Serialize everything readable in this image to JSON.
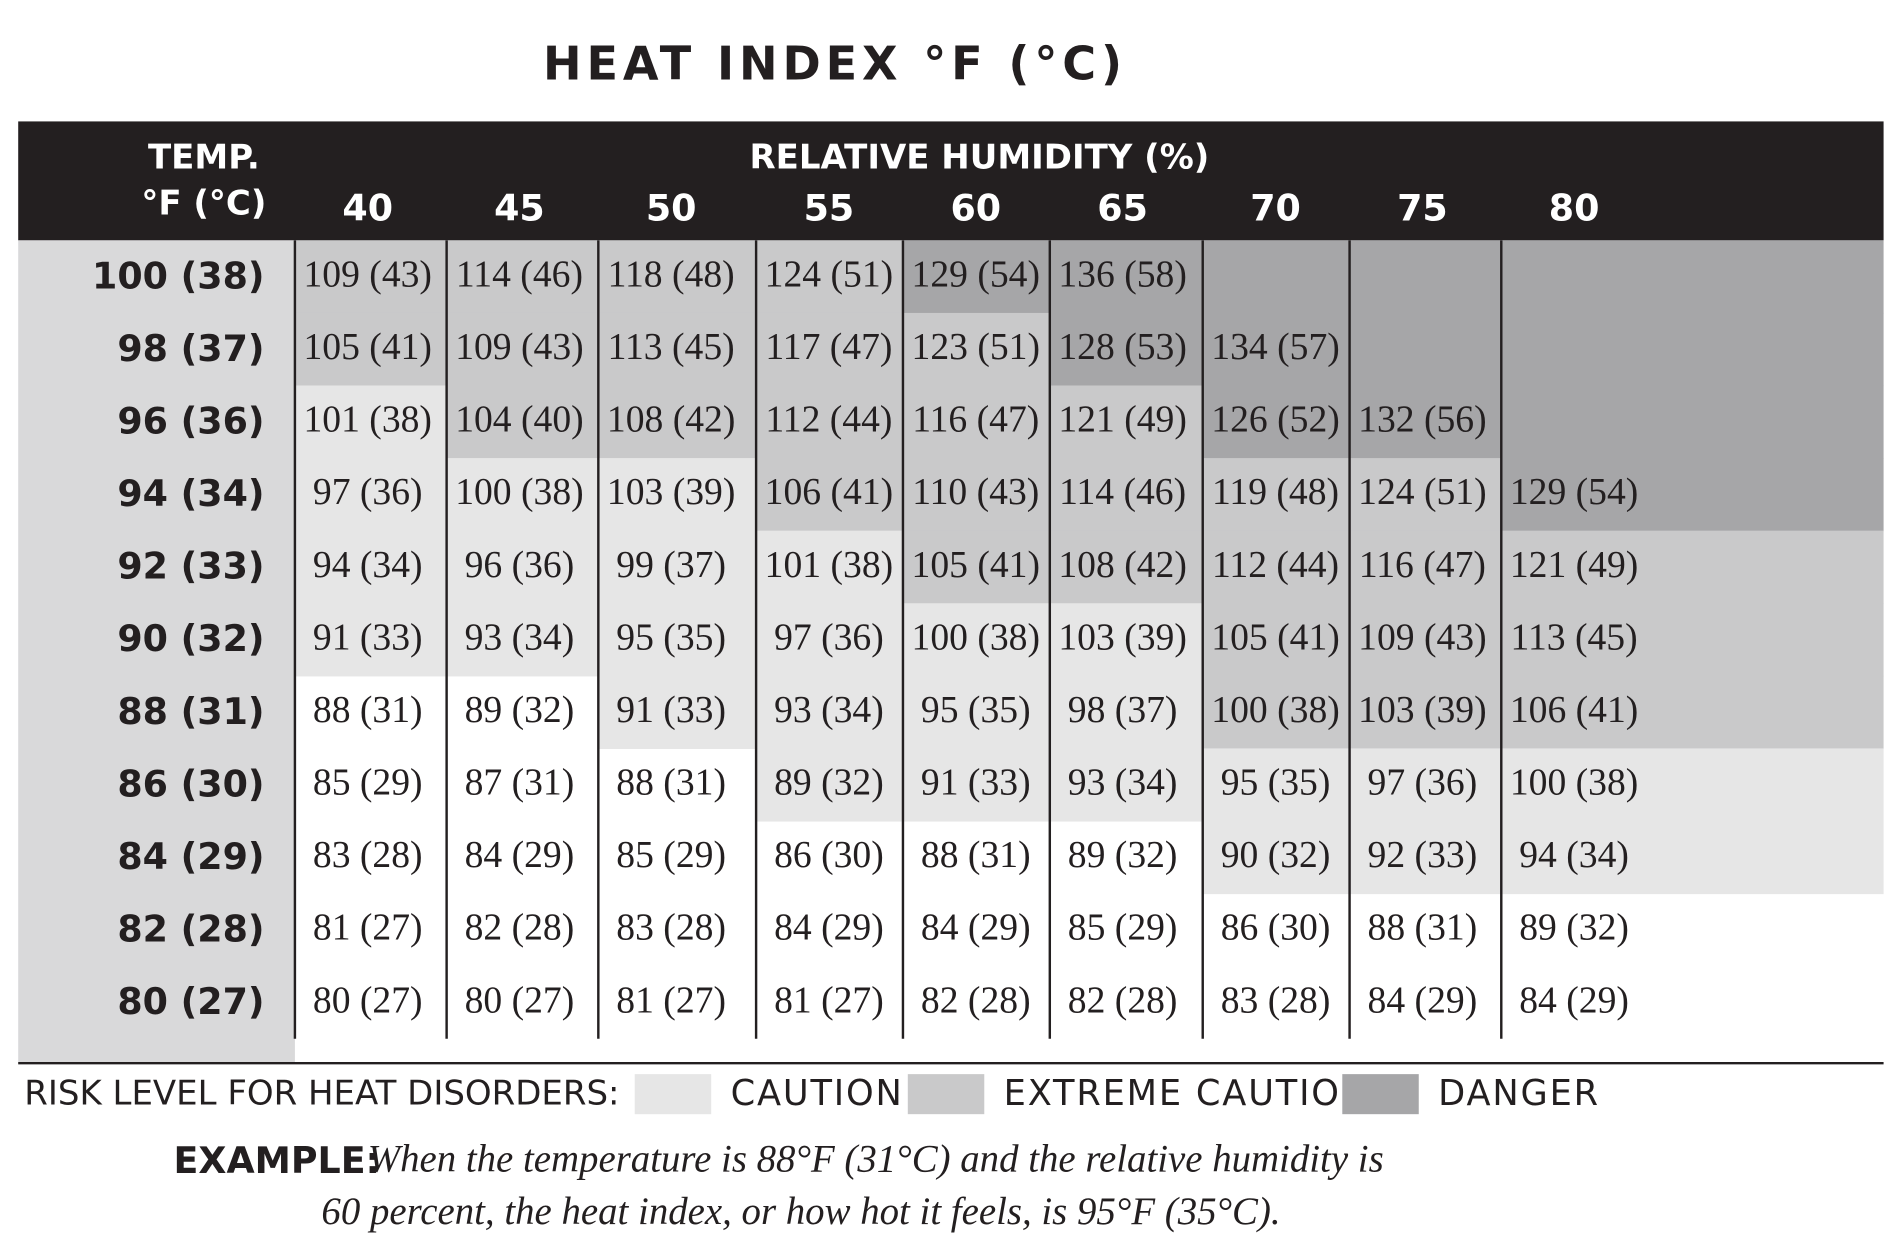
{
  "title": "HEAT INDEX °F (°C)",
  "table": {
    "corner": [
      "TEMP.",
      "°F (°C)"
    ],
    "column_header": "RELATIVE HUMIDITY (%)",
    "columns": [
      "40",
      "45",
      "50",
      "55",
      "60",
      "65",
      "70",
      "75",
      "80"
    ],
    "rows": [
      {
        "temp": "100 (38)",
        "cells": [
          "109 (43)",
          "114 (46)",
          "118 (48)",
          "124 (51)",
          "129 (54)",
          "136 (58)"
        ],
        "risk": [
          1,
          1,
          1,
          1,
          2,
          2,
          2,
          2,
          2
        ]
      },
      {
        "temp": "98 (37)",
        "cells": [
          "105 (41)",
          "109 (43)",
          "113 (45)",
          "117 (47)",
          "123 (51)",
          "128 (53)",
          "134 (57)"
        ],
        "risk": [
          1,
          1,
          1,
          1,
          1,
          2,
          2,
          2,
          2
        ]
      },
      {
        "temp": "96 (36)",
        "cells": [
          "101 (38)",
          "104 (40)",
          "108 (42)",
          "112 (44)",
          "116 (47)",
          "121 (49)",
          "126 (52)",
          "132 (56)"
        ],
        "risk": [
          0,
          1,
          1,
          1,
          1,
          1,
          2,
          2,
          2
        ]
      },
      {
        "temp": "94 (34)",
        "cells": [
          "97 (36)",
          "100 (38)",
          "103 (39)",
          "106 (41)",
          "110 (43)",
          "114 (46)",
          "119 (48)",
          "124 (51)",
          "129 (54)"
        ],
        "risk": [
          0,
          0,
          0,
          1,
          1,
          1,
          1,
          1,
          2
        ]
      },
      {
        "temp": "92 (33)",
        "cells": [
          "94 (34)",
          "96 (36)",
          "99 (37)",
          "101 (38)",
          "105 (41)",
          "108 (42)",
          "112 (44)",
          "116 (47)",
          "121 (49)"
        ],
        "risk": [
          0,
          0,
          0,
          0,
          1,
          1,
          1,
          1,
          1
        ]
      },
      {
        "temp": "90 (32)",
        "cells": [
          "91 (33)",
          "93 (34)",
          "95 (35)",
          "97 (36)",
          "100 (38)",
          "103 (39)",
          "105 (41)",
          "109 (43)",
          "113 (45)"
        ],
        "risk": [
          0,
          0,
          0,
          0,
          0,
          0,
          1,
          1,
          1
        ]
      },
      {
        "temp": "88 (31)",
        "cells": [
          "88 (31)",
          "89 (32)",
          "91 (33)",
          "93 (34)",
          "95 (35)",
          "98 (37)",
          "100 (38)",
          "103 (39)",
          "106 (41)"
        ],
        "risk": [
          null,
          null,
          0,
          0,
          0,
          0,
          1,
          1,
          1
        ]
      },
      {
        "temp": "86 (30)",
        "cells": [
          "85 (29)",
          "87 (31)",
          "88 (31)",
          "89 (32)",
          "91 (33)",
          "93 (34)",
          "95 (35)",
          "97 (36)",
          "100 (38)"
        ],
        "risk": [
          null,
          null,
          null,
          0,
          0,
          0,
          0,
          0,
          0
        ]
      },
      {
        "temp": "84 (29)",
        "cells": [
          "83 (28)",
          "84 (29)",
          "85 (29)",
          "86 (30)",
          "88 (31)",
          "89 (32)",
          "90 (32)",
          "92 (33)",
          "94 (34)"
        ],
        "risk": [
          null,
          null,
          null,
          null,
          null,
          null,
          0,
          0,
          0
        ]
      },
      {
        "temp": "82 (28)",
        "cells": [
          "81 (27)",
          "82 (28)",
          "83 (28)",
          "84 (29)",
          "84 (29)",
          "85 (29)",
          "86 (30)",
          "88 (31)",
          "89 (32)"
        ]
      },
      {
        "temp": "80 (27)",
        "cells": [
          "80 (27)",
          "80 (27)",
          "81 (27)",
          "81 (27)",
          "82 (28)",
          "82 (28)",
          "83 (28)",
          "84 (29)",
          "84 (29)"
        ]
      }
    ]
  },
  "legend": {
    "title": "RISK LEVEL FOR HEAT DISORDERS:",
    "items": [
      {
        "label": "CAUTION",
        "color": "#e6e6e6"
      },
      {
        "label": "EXTREME CAUTION",
        "color": "#c9c9ca"
      },
      {
        "label": "DANGER",
        "color": "#a6a6a8"
      }
    ]
  },
  "example": {
    "label": "EXAMPLE:",
    "lines": [
      "When the temperature is 88°F (31°C) and the relative humidity is",
      "60 percent, the heat index, or how hot it feels, is 95°F (35°C)."
    ]
  }
}
